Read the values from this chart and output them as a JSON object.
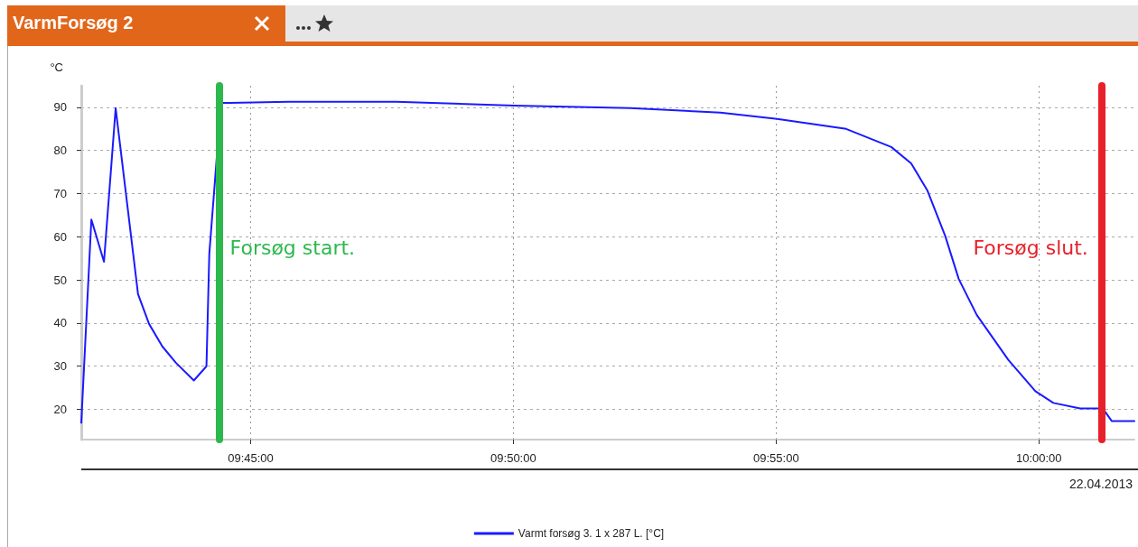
{
  "chart_data": {
    "type": "line",
    "title": "VarmForsøg 2",
    "ylabel": "°C",
    "annotations": [
      "22.04.2013"
    ],
    "xlim": [
      9.6963,
      10.0303
    ],
    "ylim": [
      13,
      95
    ],
    "xticks": [
      {
        "value": 9.75,
        "label": "09:45:00"
      },
      {
        "value": 9.833333,
        "label": "09:50:00"
      },
      {
        "value": 9.916667,
        "label": "09:55:00"
      },
      {
        "value": 10,
        "label": "10:00:00"
      }
    ],
    "yticks": [
      20,
      30,
      40,
      50,
      60,
      70,
      80,
      90
    ],
    "grid": true,
    "legend": "bottom",
    "marker": "none",
    "line_style": "solid",
    "ref_lines": [
      {
        "axis": "x",
        "value": 9.74,
        "label": "Forsøg start.",
        "color": "#2db84d"
      },
      {
        "axis": "x",
        "value": 10.0208,
        "label": "Forsøg slut.",
        "color": "#e8202a"
      }
    ],
    "series": [
      {
        "name": "Varmt forsøg 3. 1 x 287 L. [°C]",
        "color": "#1a1aff",
        "x": [
          9.6963,
          9.6995,
          9.7035,
          9.7072,
          9.7143,
          9.7178,
          9.722,
          9.7263,
          9.732,
          9.736,
          9.7369,
          9.7406,
          9.762,
          9.7962,
          9.8336,
          9.8704,
          9.899,
          9.917,
          9.9389,
          9.9532,
          9.9595,
          9.9646,
          9.9703,
          9.9746,
          9.9803,
          9.9903,
          9.9989,
          10.0046,
          10.0131,
          10.0203,
          10.0231,
          10.0303
        ],
        "values": [
          16.9,
          64,
          54.2,
          89.8,
          46.7,
          39.8,
          34.6,
          30.8,
          26.7,
          30,
          56,
          91,
          91.3,
          91.3,
          90.4,
          89.8,
          88.8,
          87.3,
          85,
          80.8,
          77,
          70.8,
          60.2,
          50.2,
          41.9,
          31.5,
          24.2,
          21.5,
          20.2,
          20.2,
          17.3,
          17.3
        ]
      }
    ]
  }
}
